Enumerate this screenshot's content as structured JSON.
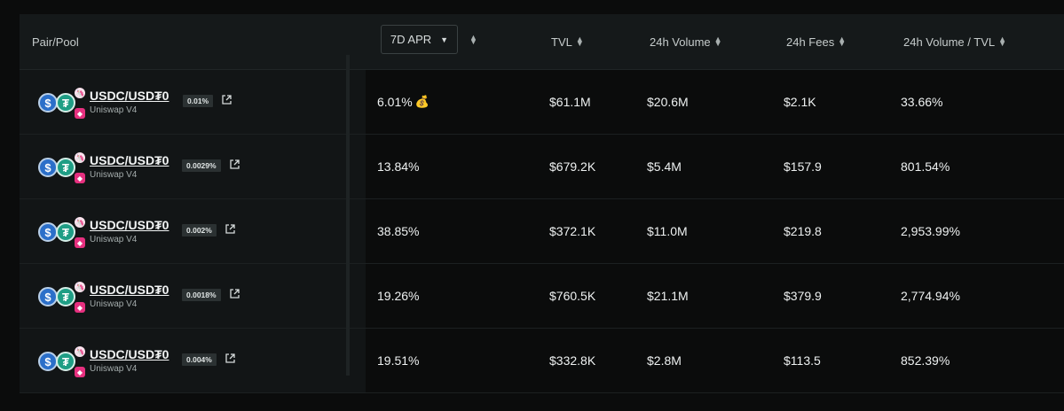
{
  "header": {
    "pair_pool": "Pair/Pool",
    "apr_select": "7D APR",
    "tvl": "TVL",
    "volume": "24h Volume",
    "fees": "24h Fees",
    "vol_tvl": "24h Volume / TVL"
  },
  "icons": {
    "sort": "sort-updown-icon",
    "chevron": "chevron-down-icon",
    "share": "external-link-icon",
    "reward": "money-bag-icon"
  },
  "colors": {
    "usdc": "#2b6fc9",
    "usdt": "#1f9e85",
    "uniswap": "#e6307f"
  },
  "rows": [
    {
      "pair": "USDC/USD₮0",
      "protocol": "Uniswap V4",
      "fee": "0.01%",
      "apr": "6.01%",
      "apr_reward": "💰",
      "tvl": "$61.1M",
      "volume": "$20.6M",
      "fees": "$2.1K",
      "vol_tvl": "33.66%"
    },
    {
      "pair": "USDC/USD₮0",
      "protocol": "Uniswap V4",
      "fee": "0.0029%",
      "apr": "13.84%",
      "apr_reward": "",
      "tvl": "$679.2K",
      "volume": "$5.4M",
      "fees": "$157.9",
      "vol_tvl": "801.54%"
    },
    {
      "pair": "USDC/USD₮0",
      "protocol": "Uniswap V4",
      "fee": "0.002%",
      "apr": "38.85%",
      "apr_reward": "",
      "tvl": "$372.1K",
      "volume": "$11.0M",
      "fees": "$219.8",
      "vol_tvl": "2,953.99%"
    },
    {
      "pair": "USDC/USD₮0",
      "protocol": "Uniswap V4",
      "fee": "0.0018%",
      "apr": "19.26%",
      "apr_reward": "",
      "tvl": "$760.5K",
      "volume": "$21.1M",
      "fees": "$379.9",
      "vol_tvl": "2,774.94%"
    },
    {
      "pair": "USDC/USD₮0",
      "protocol": "Uniswap V4",
      "fee": "0.004%",
      "apr": "19.51%",
      "apr_reward": "",
      "tvl": "$332.8K",
      "volume": "$2.8M",
      "fees": "$113.5",
      "vol_tvl": "852.39%"
    }
  ]
}
